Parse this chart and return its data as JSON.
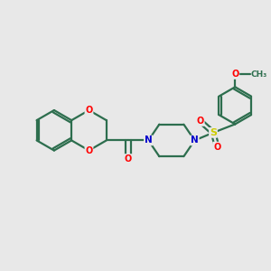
{
  "bg_color": "#e8e8e8",
  "bond_color": "#2d6e4e",
  "bond_width": 1.6,
  "atom_colors": {
    "O": "#ff0000",
    "N": "#0000cc",
    "S": "#cccc00",
    "C": "#2d6e4e"
  },
  "figsize": [
    3.0,
    3.0
  ],
  "dpi": 100
}
